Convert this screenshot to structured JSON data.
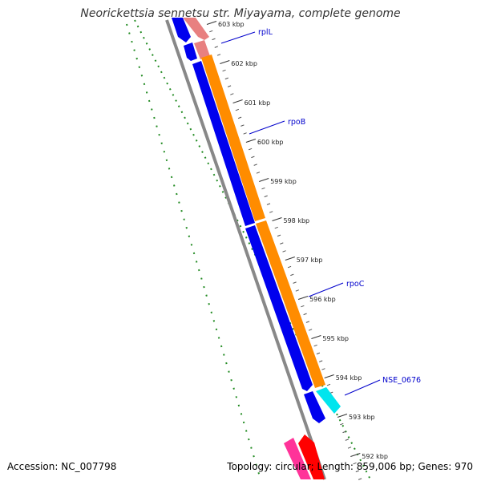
{
  "title": "Neorickettsia sennetsu str. Miyayama, complete genome",
  "footer": {
    "accession": "Accession: NC_007798",
    "summary": "Topology: circular; Length: 859,006 bp; Genes: 970"
  },
  "ticks": [
    "603 kbp",
    "602 kbp",
    "601 kbp",
    "600 kbp",
    "599 kbp",
    "598 kbp",
    "597 kbp",
    "596 kbp",
    "595 kbp",
    "594 kbp",
    "593 kbp",
    "592 kbp"
  ],
  "genes": [
    "rplL",
    "rpoB",
    "rpoC",
    "NSE_0676"
  ],
  "colors": {
    "forward_cds": "#ff8c00",
    "reverse_cds": "#0000ee",
    "rrna_pink": "#e88080",
    "cyan": "#00e5ee",
    "magenta": "#ff3399",
    "red": "#ff0000",
    "gc_skew": "#228b22",
    "backbone": "#808080",
    "label": "#0000cc"
  }
}
